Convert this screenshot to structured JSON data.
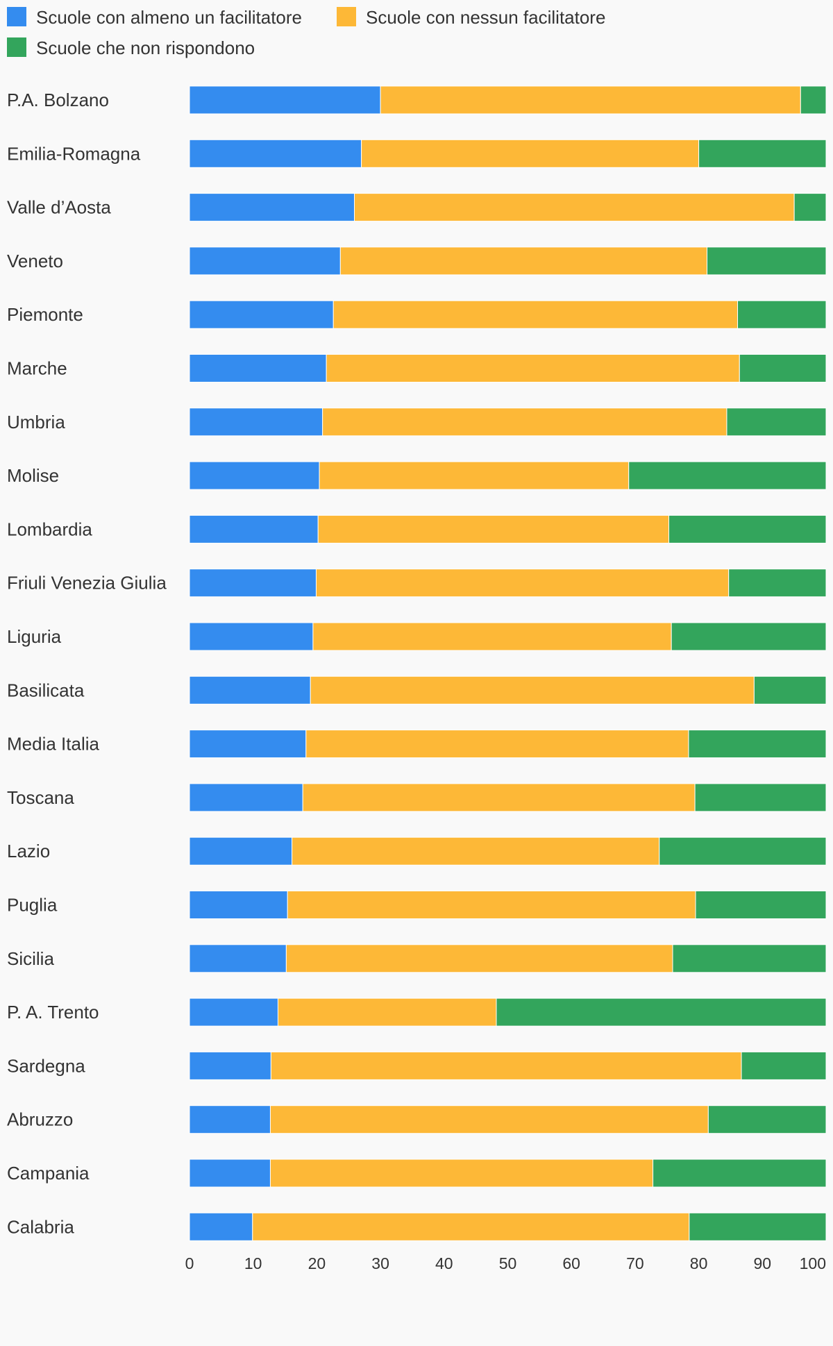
{
  "chart_data": {
    "type": "bar",
    "orientation": "horizontal",
    "stacked": true,
    "title": "",
    "xlabel": "",
    "ylabel": "",
    "xlim": [
      0,
      100
    ],
    "x_ticks": [
      "0",
      "10",
      "20",
      "30",
      "40",
      "50",
      "60",
      "70",
      "80",
      "90",
      "100"
    ],
    "grid": false,
    "legend_position": "top-left",
    "categories": [
      "P.A. Bolzano",
      "Emilia-Romagna",
      "Valle d’Aosta",
      "Veneto",
      "Piemonte",
      "Marche",
      "Umbria",
      "Molise",
      "Lombardia",
      "Friuli Venezia Giulia",
      "Liguria",
      "Basilicata",
      "Media Italia",
      "Toscana",
      "Lazio",
      "Puglia",
      "Sicilia",
      "P. A. Trento",
      "Sardegna",
      "Abruzzo",
      "Campania",
      "Calabria"
    ],
    "series": [
      {
        "name": "Scuole con almeno un facilitatore",
        "color": "#348cef",
        "values": [
          30.0,
          27.0,
          25.9,
          23.7,
          22.6,
          21.5,
          20.9,
          20.4,
          20.2,
          19.9,
          19.4,
          19.0,
          18.3,
          17.8,
          16.1,
          15.4,
          15.2,
          13.9,
          12.8,
          12.7,
          12.7,
          9.9
        ]
      },
      {
        "name": "Scuole con nessun facilitatore",
        "color": "#fdb837",
        "values": [
          66.0,
          53.0,
          69.1,
          57.6,
          63.5,
          64.9,
          63.5,
          48.6,
          55.1,
          64.8,
          56.3,
          69.7,
          60.1,
          61.6,
          57.7,
          64.1,
          60.7,
          34.3,
          73.9,
          68.8,
          60.1,
          68.6
        ]
      },
      {
        "name": "Scuole che non rispondono",
        "color": "#33a55c",
        "values": [
          4.0,
          20.0,
          5.0,
          18.7,
          13.9,
          13.6,
          15.6,
          31.0,
          24.7,
          15.3,
          24.3,
          11.3,
          21.6,
          20.6,
          26.2,
          20.5,
          24.1,
          51.8,
          13.3,
          18.5,
          27.2,
          21.5
        ]
      }
    ]
  }
}
